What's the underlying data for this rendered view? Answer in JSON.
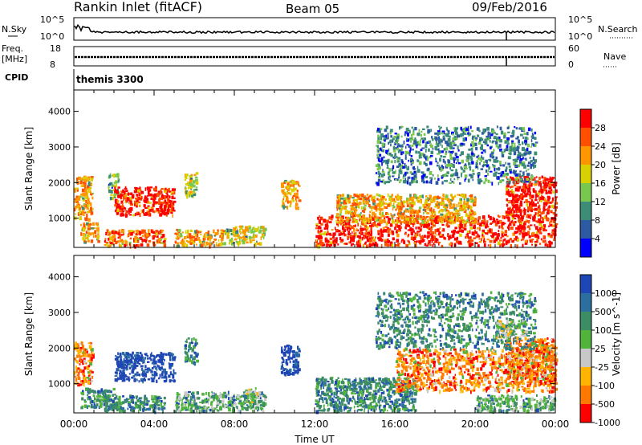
{
  "header": {
    "station": "Rankin Inlet (fitACF)",
    "beam": "Beam 05",
    "date": "09/Feb/2016"
  },
  "top_panels": {
    "nsky_label": "N.Sky",
    "nsearch_label": "N.Search",
    "nsky_ticks": [
      "10^5",
      "10^0"
    ],
    "nsearch_ticks": [
      "10^5",
      "10^0"
    ],
    "freq_label_line1": "Freq.",
    "freq_label_line2": "[MHz]",
    "freq_ticks": [
      "18",
      "8"
    ],
    "nave_label": "Nave",
    "nave_ticks": [
      "60",
      "0"
    ],
    "cpid_label": "CPID",
    "cpid_value": "themis 3300"
  },
  "chart_data": [
    {
      "type": "heatmap",
      "title": "Power",
      "ylabel": "Slant Range [km]",
      "ylim": [
        180,
        4600
      ],
      "yticks": [
        "1000",
        "2000",
        "3000",
        "4000"
      ],
      "xlim": [
        "00:00",
        "24:00"
      ],
      "colorbar_label": "Power [dB]",
      "colorbar_ticks": [
        "4",
        "8",
        "12",
        "16",
        "20",
        "24",
        "28"
      ],
      "colors": [
        "#0000ff",
        "#2d5aa0",
        "#3c8c78",
        "#78c850",
        "#d8d000",
        "#ff9600",
        "#ff5000",
        "#ff0000"
      ],
      "echo_regions": [
        {
          "t": [
            0.0,
            0.9
          ],
          "range": [
            1000,
            2200
          ],
          "level": 5
        },
        {
          "t": [
            0.3,
            1.2
          ],
          "range": [
            350,
            900
          ],
          "level": 5
        },
        {
          "t": [
            1.7,
            2.2
          ],
          "range": [
            1600,
            2300
          ],
          "level": 3
        },
        {
          "t": [
            2.0,
            5.0
          ],
          "range": [
            1100,
            1900
          ],
          "level": 7
        },
        {
          "t": [
            1.5,
            4.5
          ],
          "range": [
            250,
            700
          ],
          "level": 6
        },
        {
          "t": [
            5.5,
            6.1
          ],
          "range": [
            1600,
            2300
          ],
          "level": 4
        },
        {
          "t": [
            5.0,
            7.5
          ],
          "range": [
            250,
            700
          ],
          "level": 5
        },
        {
          "t": [
            7.5,
            9.5
          ],
          "range": [
            300,
            800
          ],
          "level": 4
        },
        {
          "t": [
            10.3,
            11.2
          ],
          "range": [
            1300,
            2100
          ],
          "level": 5
        },
        {
          "t": [
            12.0,
            24.0
          ],
          "range": [
            250,
            1100
          ],
          "level": 7
        },
        {
          "t": [
            13.0,
            20.0
          ],
          "range": [
            900,
            1700
          ],
          "level": 5
        },
        {
          "t": [
            21.5,
            24.0
          ],
          "range": [
            1000,
            2200
          ],
          "level": 7
        },
        {
          "t": [
            15.0,
            23.0
          ],
          "range": [
            2000,
            3600
          ],
          "level": 2
        }
      ]
    },
    {
      "type": "heatmap",
      "title": "Velocity",
      "ylabel": "Slant Range [km]",
      "ylim": [
        180,
        4600
      ],
      "yticks": [
        "1000",
        "2000",
        "3000",
        "4000"
      ],
      "xlim": [
        "00:00",
        "24:00"
      ],
      "xticks": [
        "00:00",
        "04:00",
        "08:00",
        "12:00",
        "16:00",
        "20:00",
        "00:00"
      ],
      "xlabel": "Time UT",
      "colorbar_label": "Velocity [m s^-1]",
      "colorbar_ticks": [
        "1000",
        "500",
        "100",
        "25",
        "-25",
        "-100",
        "-500",
        "-1000"
      ],
      "colors": [
        "#1e46b4",
        "#2d6ea0",
        "#3c8c64",
        "#50b43c",
        "#c8c8c8",
        "#ffb400",
        "#ff7800",
        "#ff0000"
      ],
      "echo_regions": [
        {
          "t": [
            0.0,
            0.9
          ],
          "range": [
            1000,
            2200
          ],
          "level": 6
        },
        {
          "t": [
            0.3,
            2.0
          ],
          "range": [
            350,
            900
          ],
          "level": 2
        },
        {
          "t": [
            2.0,
            5.0
          ],
          "range": [
            1100,
            1900
          ],
          "level": 0
        },
        {
          "t": [
            1.5,
            4.5
          ],
          "range": [
            250,
            700
          ],
          "level": 2
        },
        {
          "t": [
            5.5,
            6.1
          ],
          "range": [
            1600,
            2300
          ],
          "level": 2
        },
        {
          "t": [
            5.0,
            9.5
          ],
          "range": [
            250,
            800
          ],
          "level": 3
        },
        {
          "t": [
            8.5,
            9.2
          ],
          "range": [
            500,
            900
          ],
          "level": 4
        },
        {
          "t": [
            10.3,
            11.2
          ],
          "range": [
            1300,
            2100
          ],
          "level": 0
        },
        {
          "t": [
            12.0,
            17.0
          ],
          "range": [
            250,
            1200
          ],
          "level": 2
        },
        {
          "t": [
            16.0,
            24.0
          ],
          "range": [
            800,
            2000
          ],
          "level": 6
        },
        {
          "t": [
            20.0,
            24.0
          ],
          "range": [
            250,
            700
          ],
          "level": 3
        },
        {
          "t": [
            21.5,
            24.0
          ],
          "range": [
            1000,
            2300
          ],
          "level": 6
        },
        {
          "t": [
            15.0,
            23.0
          ],
          "range": [
            2000,
            3600
          ],
          "level": 2
        },
        {
          "t": [
            21.0,
            22.5
          ],
          "range": [
            2300,
            2800
          ],
          "level": 4
        }
      ]
    }
  ]
}
